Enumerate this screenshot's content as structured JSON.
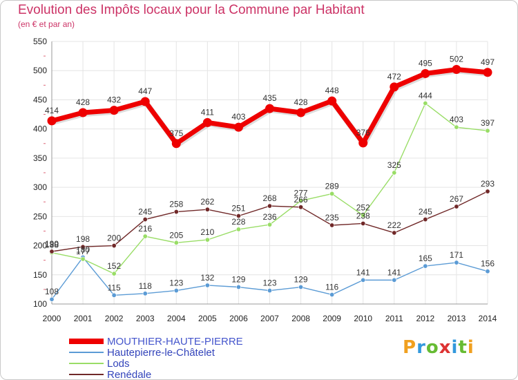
{
  "chart_data": {
    "type": "line",
    "title": "Evolution des Impôts locaux pour la Commune par Habitant",
    "subtitle": "(en € et par an)",
    "xlabel": "",
    "ylabel": "",
    "ylim": [
      100,
      550
    ],
    "yticks": [
      100,
      150,
      200,
      250,
      300,
      350,
      400,
      450,
      500,
      550
    ],
    "x": [
      "2000",
      "2001",
      "2002",
      "2003",
      "2004",
      "2005",
      "2006",
      "2007",
      "2008",
      "2009",
      "2010",
      "2011",
      "2012",
      "2013",
      "2014"
    ],
    "grid": true,
    "legend_position": "bottom-left",
    "series": [
      {
        "name": "MOUTHIER-HAUTE-PIERRE",
        "color": "#ee0000",
        "values": [
          414,
          428,
          432,
          447,
          375,
          411,
          403,
          435,
          428,
          448,
          376,
          472,
          495,
          502,
          497
        ]
      },
      {
        "name": "Hautepierre-le-Châtelet",
        "color": "#5b9bd5",
        "values": [
          108,
          180,
          115,
          118,
          123,
          132,
          129,
          123,
          129,
          116,
          141,
          141,
          165,
          171,
          156
        ]
      },
      {
        "name": "Lods",
        "color": "#99dd66",
        "values": [
          188,
          177,
          152,
          216,
          205,
          210,
          228,
          236,
          277,
          289,
          252,
          325,
          444,
          403,
          397
        ]
      },
      {
        "name": "Renédale",
        "color": "#702828",
        "values": [
          190,
          198,
          200,
          245,
          258,
          262,
          251,
          268,
          266,
          235,
          238,
          222,
          245,
          267,
          293
        ]
      }
    ],
    "data_labels": [
      [
        "414",
        "428",
        "432",
        "447",
        "375",
        "411",
        "403",
        "435",
        "428",
        "448",
        "376",
        "472",
        "495",
        "502",
        "497"
      ],
      [
        "108",
        "180",
        "115",
        "118",
        "123",
        "132",
        "129",
        "123",
        "129",
        "116",
        "141",
        "141",
        "165",
        "171",
        "156"
      ],
      [
        "188",
        "177",
        "152",
        "216",
        "205",
        "210",
        "228",
        "236",
        "277",
        "289",
        "252",
        "325",
        "444",
        "403",
        "397"
      ],
      [
        "190",
        "198",
        "200",
        "245",
        "258",
        "262",
        "251",
        "268",
        "266",
        "235",
        "238",
        "222",
        "245",
        "267",
        "293"
      ]
    ]
  },
  "logo": {
    "text": "Proxiti"
  }
}
